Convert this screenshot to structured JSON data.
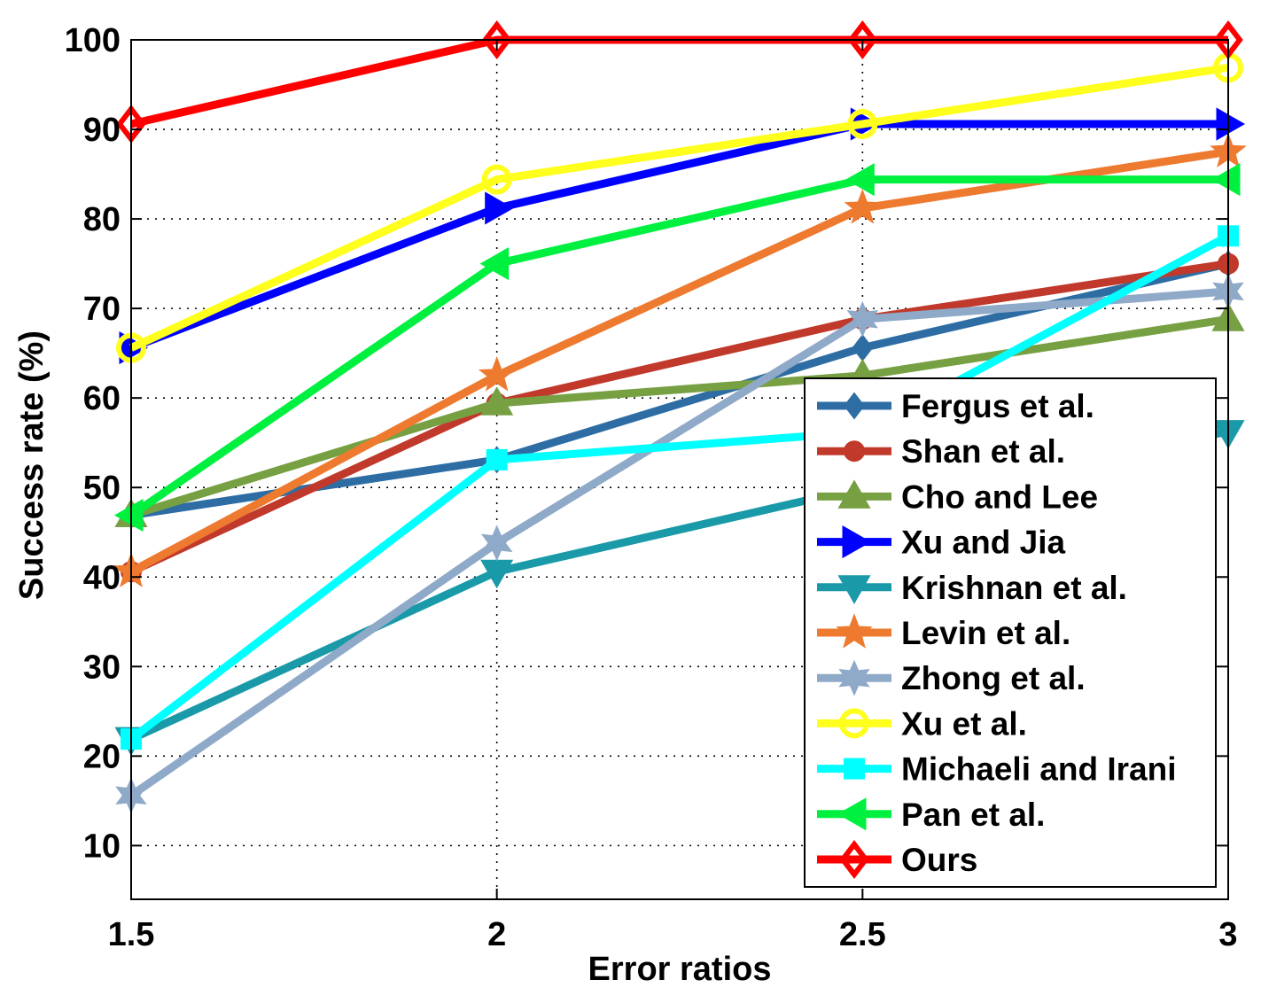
{
  "chart_data": {
    "type": "line",
    "xlabel": "Error ratios",
    "ylabel": "Success rate (%)",
    "x": [
      1.5,
      2,
      2.5,
      3
    ],
    "x_ticks": [
      "1.5",
      "2",
      "2.5",
      "3"
    ],
    "y_ticks": [
      "10",
      "20",
      "30",
      "40",
      "50",
      "60",
      "70",
      "80",
      "90",
      "100"
    ],
    "xlim": [
      1.5,
      3
    ],
    "ylim": [
      4,
      100
    ],
    "grid": true,
    "legend_position": "bottom-right",
    "series": [
      {
        "name": "Fergus et al.",
        "color": "#2e6da4",
        "marker": "diamond",
        "values": [
          46.9,
          53.1,
          65.6,
          75.0
        ]
      },
      {
        "name": "Shan et al.",
        "color": "#c0392b",
        "marker": "circle",
        "values": [
          40.6,
          59.4,
          68.8,
          75.0
        ]
      },
      {
        "name": "Cho and Lee",
        "color": "#77a043",
        "marker": "triangle-up",
        "values": [
          46.9,
          59.4,
          62.5,
          68.8
        ]
      },
      {
        "name": "Xu and Jia",
        "color": "#0000ff",
        "marker": "triangle-right",
        "values": [
          65.6,
          81.2,
          90.6,
          90.6
        ]
      },
      {
        "name": "Krishnan et al.",
        "color": "#1a9aa8",
        "marker": "triangle-down",
        "values": [
          21.9,
          40.6,
          50.0,
          56.2
        ]
      },
      {
        "name": "Levin et al.",
        "color": "#ee7a30",
        "marker": "star5",
        "values": [
          40.6,
          62.5,
          81.2,
          87.5
        ]
      },
      {
        "name": "Zhong et al.",
        "color": "#8fa9c8",
        "marker": "star6",
        "values": [
          15.6,
          43.8,
          68.8,
          71.9
        ]
      },
      {
        "name": "Xu et al.",
        "color": "#ffff1e",
        "marker": "circle-open",
        "values": [
          65.6,
          84.4,
          90.6,
          96.9
        ]
      },
      {
        "name": "Michaeli and Irani",
        "color": "#00ffff",
        "marker": "square",
        "values": [
          21.9,
          53.1,
          56.2,
          78.1
        ]
      },
      {
        "name": "Pan et al.",
        "color": "#00f040",
        "marker": "triangle-left",
        "values": [
          46.9,
          75.0,
          84.4,
          84.4
        ]
      },
      {
        "name": "Ours",
        "color": "#ff0000",
        "marker": "diamond-open",
        "values": [
          90.6,
          100.0,
          100.0,
          100.0
        ]
      }
    ]
  }
}
